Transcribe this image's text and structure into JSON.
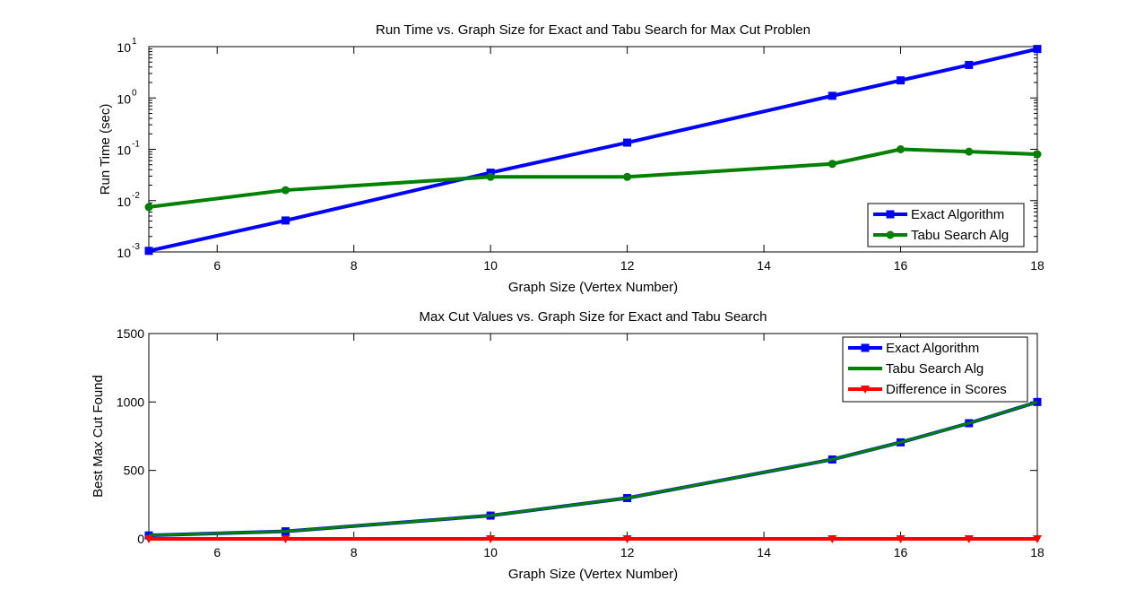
{
  "chart_data": [
    {
      "type": "line",
      "title": "Run Time vs. Graph Size for Exact and Tabu Search for Max Cut Problen",
      "xlabel": "Graph Size (Vertex Number)",
      "ylabel": "Run Time (sec)",
      "xlim": [
        5,
        18
      ],
      "ylim": [
        0.001,
        10
      ],
      "yscale": "log",
      "x_ticks": [
        6,
        8,
        10,
        12,
        14,
        16,
        18
      ],
      "y_ticks": [
        {
          "value": 0.001,
          "base": "10",
          "exp": "-3"
        },
        {
          "value": 0.01,
          "base": "10",
          "exp": "-2"
        },
        {
          "value": 0.1,
          "base": "10",
          "exp": "-1"
        },
        {
          "value": 1,
          "base": "10",
          "exp": "0"
        },
        {
          "value": 10,
          "base": "10",
          "exp": "1"
        }
      ],
      "grid": false,
      "legend_position": "bottom-right",
      "x": [
        5,
        7,
        10,
        12,
        15,
        16,
        17,
        18
      ],
      "series": [
        {
          "name": "Exact Algorithm",
          "color": "#0000ff",
          "marker": "square",
          "values": [
            0.00105,
            0.0041,
            0.035,
            0.135,
            1.1,
            2.2,
            4.4,
            9.0
          ]
        },
        {
          "name": "Tabu Search Alg",
          "color": "#008000",
          "marker": "circle",
          "values": [
            0.0075,
            0.016,
            0.029,
            0.029,
            0.052,
            0.1,
            0.09,
            0.08
          ]
        }
      ]
    },
    {
      "type": "line",
      "title": "Max Cut Values vs. Graph Size for Exact and Tabu Search",
      "xlabel": "Graph Size (Vertex Number)",
      "ylabel": "Best Max Cut Found",
      "xlim": [
        5,
        18
      ],
      "ylim": [
        0,
        1500
      ],
      "yscale": "linear",
      "x_ticks": [
        6,
        8,
        10,
        12,
        14,
        16,
        18
      ],
      "y_ticks": [
        0,
        500,
        1000,
        1500
      ],
      "grid": false,
      "legend_position": "top-right",
      "x": [
        5,
        7,
        10,
        12,
        15,
        16,
        17,
        18
      ],
      "series": [
        {
          "name": "Exact Algorithm",
          "color": "#0000ff",
          "marker": "square",
          "values": [
            25,
            55,
            170,
            298,
            580,
            705,
            845,
            1000
          ]
        },
        {
          "name": "Tabu Search Alg",
          "color": "#008000",
          "marker": "none",
          "values": [
            25,
            55,
            170,
            298,
            580,
            705,
            845,
            1000
          ]
        },
        {
          "name": "Difference in Scores",
          "color": "#ff0000",
          "marker": "triangle",
          "values": [
            0,
            0,
            0,
            0,
            0,
            0,
            0,
            0
          ]
        }
      ]
    }
  ]
}
